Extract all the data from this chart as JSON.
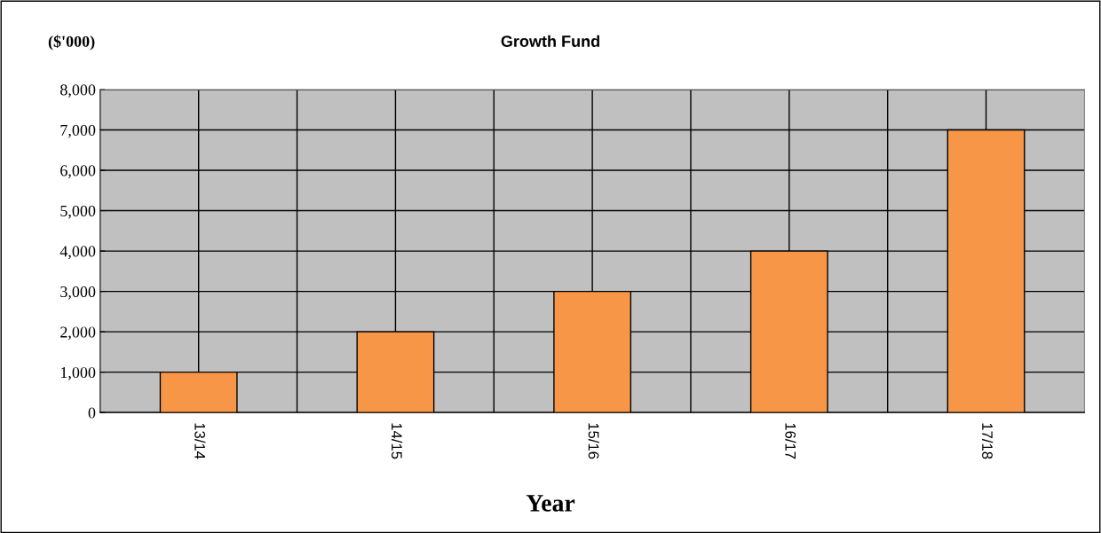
{
  "chart_data": {
    "type": "bar",
    "title": "Growth Fund",
    "ylabel": "($'000)",
    "xlabel": "Year",
    "categories": [
      "13/14",
      "14/15",
      "15/16",
      "16/17",
      "17/18"
    ],
    "values": [
      1000,
      2000,
      3000,
      4000,
      7000
    ],
    "color": "#f79646",
    "ylim": [
      0,
      8000
    ],
    "yticks": [
      {
        "value": 0,
        "label": "0"
      },
      {
        "value": 1000,
        "label": "1,000"
      },
      {
        "value": 2000,
        "label": "2,000"
      },
      {
        "value": 3000,
        "label": "3,000"
      },
      {
        "value": 4000,
        "label": "4,000"
      },
      {
        "value": 5000,
        "label": "5,000"
      },
      {
        "value": 6000,
        "label": "6,000"
      },
      {
        "value": 7000,
        "label": "7,000"
      },
      {
        "value": 8000,
        "label": "8,000"
      }
    ],
    "grid": true
  }
}
